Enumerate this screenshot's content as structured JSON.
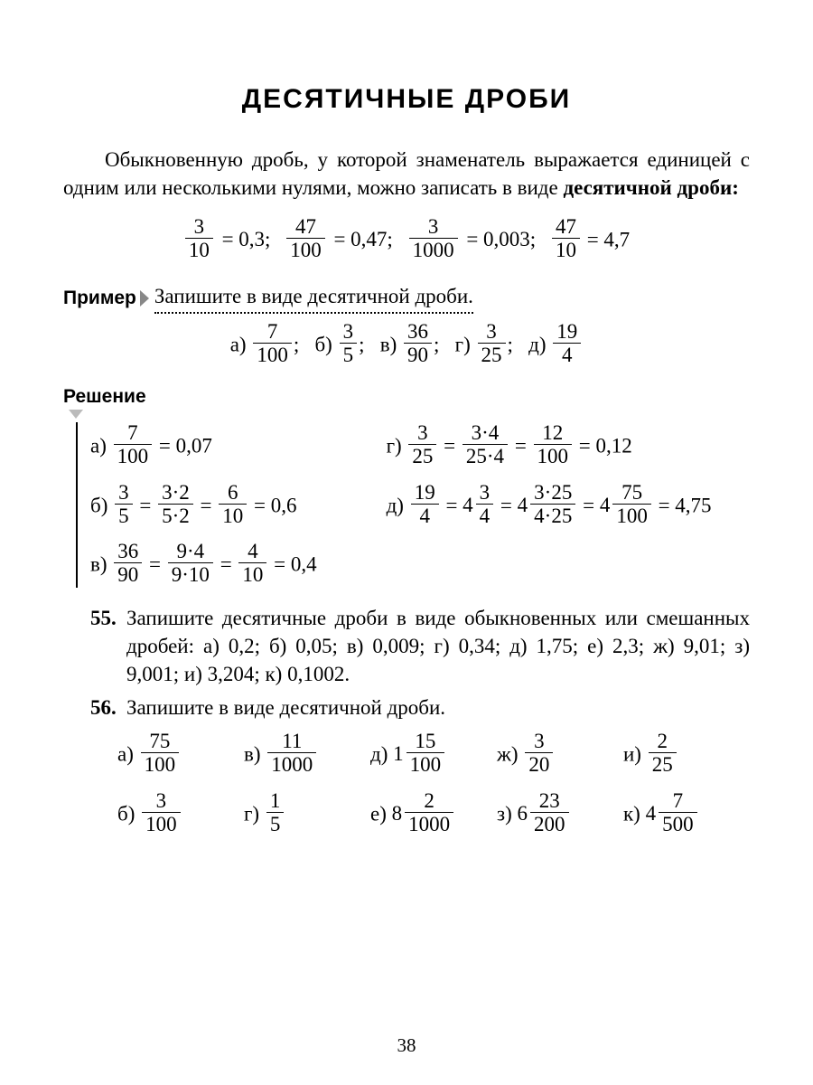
{
  "title": "ДЕСЯТИЧНЫЕ ДРОБИ",
  "intro_a": "Обыкновенную дробь, у которой знаменатель выражается единицей с одним или несколькими нулями, можно записать в виде ",
  "intro_b": "десятичной дроби:",
  "eq1": {
    "n": "3",
    "d": "10",
    "r": "= 0,3;"
  },
  "eq2": {
    "n": "47",
    "d": "100",
    "r": "= 0,47;"
  },
  "eq3": {
    "n": "3",
    "d": "1000",
    "r": "= 0,003;"
  },
  "eq4": {
    "n": "47",
    "d": "10",
    "r": "= 4,7"
  },
  "example_label": "Пример",
  "example_text": "Запишите в виде десятичной дроби.",
  "exA": {
    "l": "а)",
    "n": "7",
    "d": "100"
  },
  "exB": {
    "l": "б)",
    "n": "3",
    "d": "5"
  },
  "exC": {
    "l": "в)",
    "n": "36",
    "d": "90"
  },
  "exD": {
    "l": "г)",
    "n": "3",
    "d": "25"
  },
  "exE": {
    "l": "д)",
    "n": "19",
    "d": "4"
  },
  "sol_label": "Решение",
  "solA": {
    "l": "а)",
    "n1": "7",
    "d1": "100",
    "r": "= 0,07"
  },
  "solB": {
    "l": "б)",
    "n1": "3",
    "d1": "5",
    "n2": "3·2",
    "d2": "5·2",
    "n3": "6",
    "d3": "10",
    "r": "= 0,6"
  },
  "solC": {
    "l": "в)",
    "n1": "36",
    "d1": "90",
    "n2": "9·4",
    "d2": "9·10",
    "n3": "4",
    "d3": "10",
    "r": "= 0,4"
  },
  "solD": {
    "l": "г)",
    "n1": "3",
    "d1": "25",
    "n2": "3·4",
    "d2": "25·4",
    "n3": "12",
    "d3": "100",
    "r": "= 0,12"
  },
  "solE": {
    "l": "д)",
    "n1": "19",
    "d1": "4",
    "i2": "4",
    "n2": "3",
    "d2": "4",
    "i3": "4",
    "n3": "3·25",
    "d3": "4·25",
    "i4": "4",
    "n4": "75",
    "d4": "100",
    "r": "= 4,75"
  },
  "t55": {
    "num": "55.",
    "text": "Запишите десятичные дроби в виде обыкновенных или смешанных дробей: а) 0,2; б) 0,05; в) 0,009; г) 0,34; д) 1,75; е) 2,3; ж) 9,01; з) 9,001; и) 3,204; к) 0,1002."
  },
  "t56": {
    "num": "56.",
    "text": "Запишите в виде десятичной дроби."
  },
  "g": {
    "a": {
      "l": "а)",
      "n": "75",
      "d": "100"
    },
    "b": {
      "l": "б)",
      "n": "3",
      "d": "100"
    },
    "c": {
      "l": "в)",
      "n": "11",
      "d": "1000"
    },
    "d": {
      "l": "г)",
      "n": "1",
      "d": "5"
    },
    "e": {
      "l": "д)",
      "i": "1",
      "n": "15",
      "d": "100"
    },
    "f": {
      "l": "е)",
      "i": "8",
      "n": "2",
      "d": "1000"
    },
    "h": {
      "l": "ж)",
      "n": "3",
      "d": "20"
    },
    "i": {
      "l": "з)",
      "i": "6",
      "n": "23",
      "d": "200"
    },
    "j": {
      "l": "и)",
      "n": "2",
      "d": "25"
    },
    "k": {
      "l": "к)",
      "i": "4",
      "n": "7",
      "d": "500"
    }
  },
  "page_number": "38"
}
